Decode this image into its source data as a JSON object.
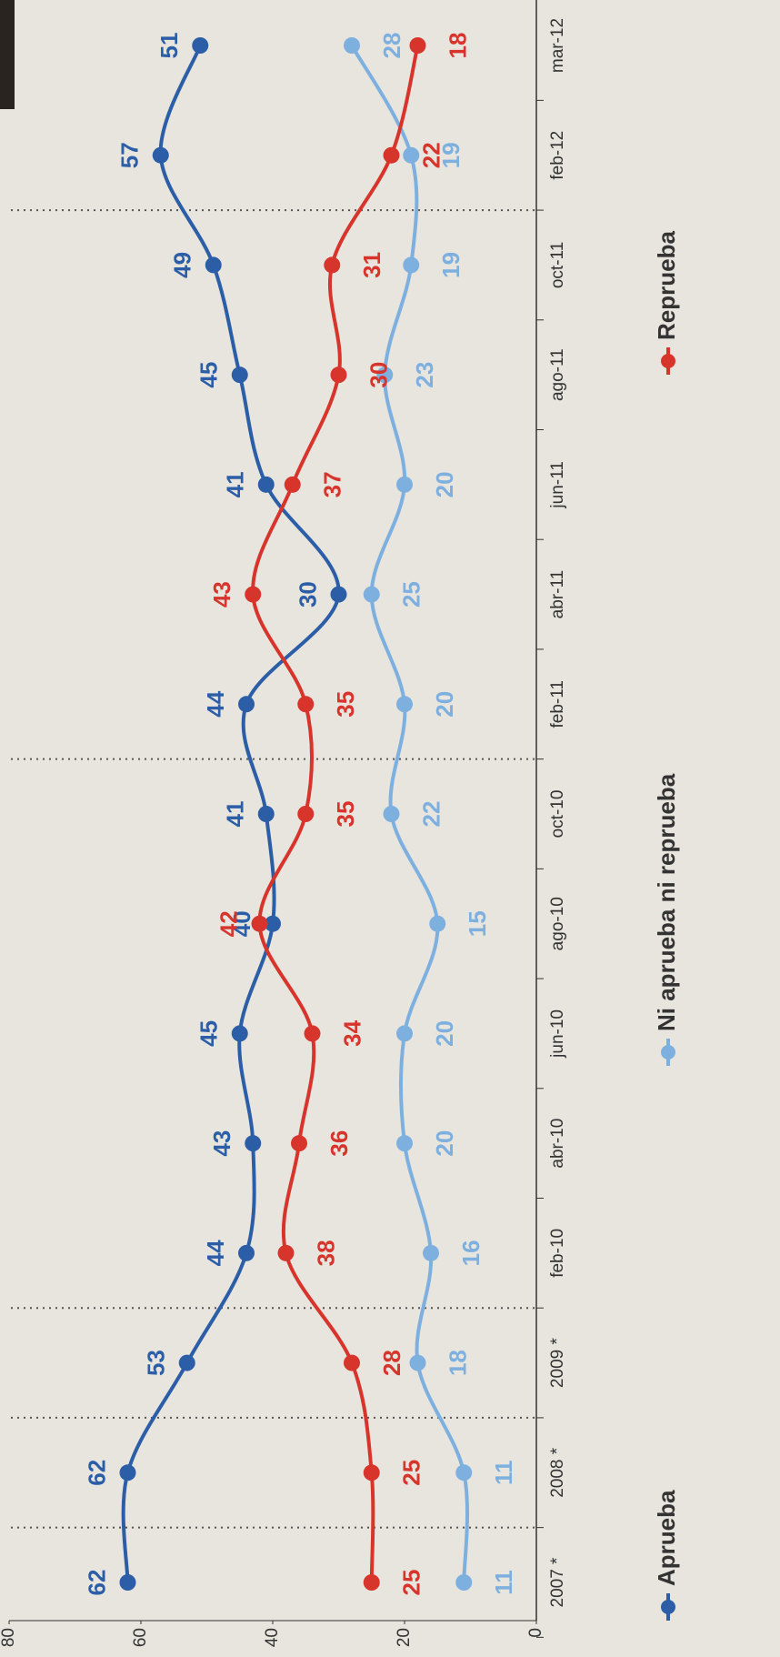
{
  "chart_data": {
    "type": "line",
    "categories": [
      "2007 *",
      "2008 *",
      "2009 *",
      "feb-10",
      "abr-10",
      "jun-10",
      "ago-10",
      "oct-10",
      "feb-11",
      "abr-11",
      "jun-11",
      "ago-11",
      "oct-11",
      "feb-12",
      "mar-12"
    ],
    "series": [
      {
        "name": "Aprueba",
        "color": "#2b5ea6",
        "values": [
          62,
          62,
          53,
          44,
          43,
          45,
          40,
          41,
          44,
          30,
          41,
          45,
          49,
          57,
          51
        ]
      },
      {
        "name": "Ni aprueba ni reprueba",
        "color": "#7eb0df",
        "values": [
          11,
          11,
          18,
          16,
          20,
          20,
          15,
          22,
          20,
          25,
          20,
          23,
          19,
          19,
          28
        ]
      },
      {
        "name": "Reprueba",
        "color": "#d7352c",
        "values": [
          25,
          25,
          28,
          38,
          36,
          34,
          42,
          35,
          35,
          43,
          37,
          30,
          31,
          22,
          18
        ]
      }
    ],
    "ylim": [
      0,
      80
    ],
    "yticks": [
      0,
      20,
      40,
      60,
      80
    ],
    "grid": false
  }
}
